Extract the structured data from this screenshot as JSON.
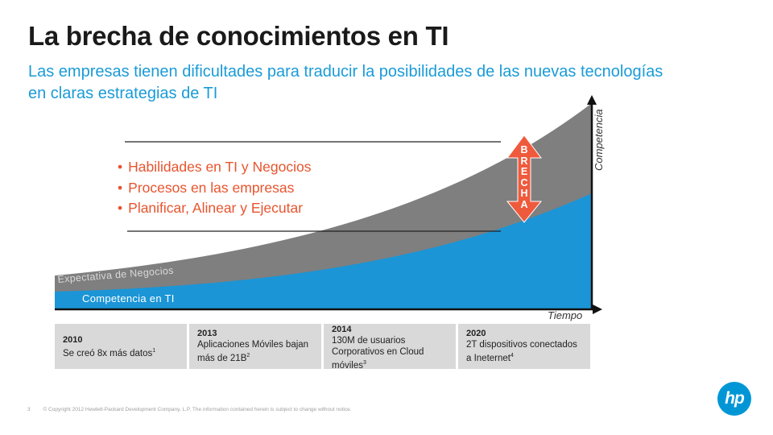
{
  "header": {
    "title": "La brecha de conocimientos en TI",
    "subtitle": "Las empresas tienen dificultades para traducir la posibilidades de las nuevas tecnologías en claras estrategias de TI"
  },
  "diagram": {
    "bullets": [
      "Habilidades en TI y Negocios",
      "Procesos en las empresas",
      "Planificar, Alinear y Ejecutar"
    ],
    "business_expectation_label": "Expectativa de Negocios",
    "it_competence_label": "Competencia en TI",
    "y_axis_label": "Competencia",
    "x_axis_label": "Tiempo",
    "gap_letters": [
      "B",
      "R",
      "E",
      "C",
      "H",
      "A"
    ],
    "colors": {
      "business_area": "#7f7f7f",
      "it_area": "#1b95d6",
      "gap_arrow": "#ef5a3c",
      "bullets": "#e8542e"
    }
  },
  "milestones": [
    {
      "year": "2010",
      "text": "Se creó 8x más datos",
      "note": "1"
    },
    {
      "year": "2013",
      "text": "Aplicaciones Móviles bajan más de 21B",
      "note": "2"
    },
    {
      "year": "2014",
      "text": "130M de usuarios Corporativos en Cloud móviles",
      "note": "3"
    },
    {
      "year": "2020",
      "text": "2T dispositivos conectados a Ineternet",
      "note": "4"
    }
  ],
  "footer": {
    "page_number": "3",
    "copyright": "© Copyright 2012 Hewlett-Packard Development Company, L.P. The information contained herein is subject to change without notice."
  },
  "logo": {
    "text": "hp",
    "icon": "hp-logo-icon"
  }
}
